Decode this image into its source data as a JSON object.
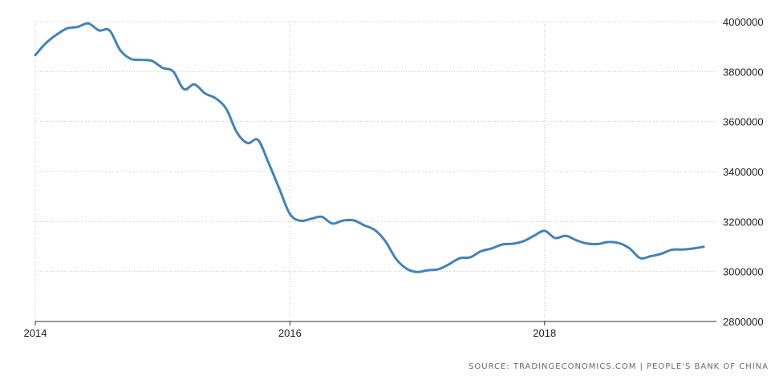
{
  "chart_data": {
    "type": "line",
    "title": "",
    "xlabel": "",
    "ylabel": "",
    "xlim": [
      2014.0,
      2019.35
    ],
    "ylim": [
      2800000,
      4000000
    ],
    "x_ticks": [
      2014,
      2016,
      2018
    ],
    "y_ticks": [
      2800000,
      3000000,
      3200000,
      3400000,
      3600000,
      3800000,
      4000000
    ],
    "x_tick_labels": [
      "2014",
      "2016",
      "2018"
    ],
    "y_tick_labels": [
      "2800000",
      "3000000",
      "3200000",
      "3400000",
      "3600000",
      "3800000",
      "4000000"
    ],
    "grid": true,
    "line_color": "#4682b4",
    "series": [
      {
        "x": [
          2014.0,
          2014.083,
          2014.167,
          2014.25,
          2014.333,
          2014.417,
          2014.5,
          2014.583,
          2014.667,
          2014.75,
          2014.833,
          2014.917,
          2015.0,
          2015.083,
          2015.167,
          2015.25,
          2015.333,
          2015.417,
          2015.5,
          2015.583,
          2015.667,
          2015.75,
          2015.833,
          2015.917,
          2016.0,
          2016.083,
          2016.167,
          2016.25,
          2016.333,
          2016.417,
          2016.5,
          2016.583,
          2016.667,
          2016.75,
          2016.833,
          2016.917,
          2017.0,
          2017.083,
          2017.167,
          2017.25,
          2017.333,
          2017.417,
          2017.5,
          2017.583,
          2017.667,
          2017.75,
          2017.833,
          2017.917,
          2018.0,
          2018.083,
          2018.167,
          2018.25,
          2018.333,
          2018.417,
          2018.5,
          2018.583,
          2018.667,
          2018.75,
          2018.833,
          2018.917,
          2019.0,
          2019.083,
          2019.167,
          2019.25
        ],
        "values": [
          3866000,
          3914000,
          3948000,
          3973000,
          3979000,
          3993000,
          3965000,
          3965000,
          3886000,
          3851000,
          3847000,
          3843000,
          3815000,
          3801000,
          3730000,
          3749000,
          3713000,
          3693000,
          3651000,
          3557000,
          3514000,
          3526000,
          3434000,
          3331000,
          3230000,
          3203000,
          3211000,
          3219000,
          3192000,
          3204000,
          3205000,
          3185000,
          3166000,
          3121000,
          3051000,
          3011000,
          2998000,
          3005000,
          3009000,
          3029000,
          3053000,
          3057000,
          3081000,
          3092000,
          3108000,
          3111000,
          3121000,
          3143000,
          3163000,
          3134000,
          3143000,
          3125000,
          3112000,
          3110000,
          3118000,
          3114000,
          3093000,
          3054000,
          3061000,
          3071000,
          3087000,
          3088000,
          3092000,
          3099000
        ]
      }
    ]
  },
  "source_text": "SOURCE: TRADINGECONOMICS.COM | PEOPLE'S BANK OF CHINA"
}
